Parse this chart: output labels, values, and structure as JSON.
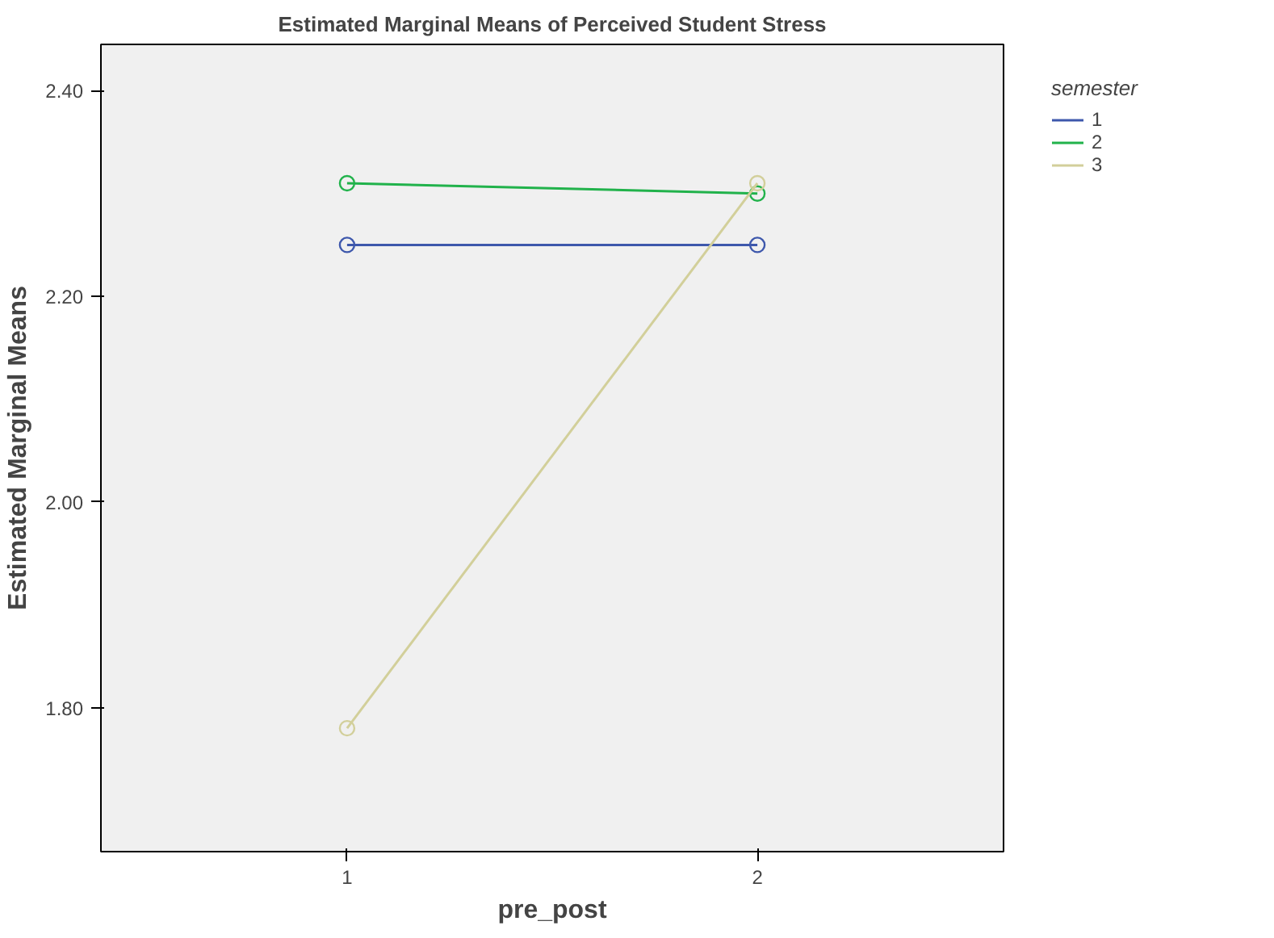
{
  "chart_data": {
    "type": "line",
    "title": "Estimated Marginal Means of Perceived Student Stress",
    "xlabel": "pre_post",
    "ylabel": "Estimated Marginal Means",
    "legend_title": "semester",
    "categories": [
      "1",
      "2"
    ],
    "series": [
      {
        "name": "1",
        "color": "#3e58ac",
        "values": [
          2.25,
          2.25
        ]
      },
      {
        "name": "2",
        "color": "#21b24b",
        "values": [
          2.31,
          2.3
        ]
      },
      {
        "name": "3",
        "color": "#d2cf9a",
        "values": [
          1.78,
          2.31
        ]
      }
    ],
    "ylim": [
      1.66,
      2.445
    ],
    "yticks": [
      {
        "value": 1.8,
        "label": "1.80"
      },
      {
        "value": 2.0,
        "label": "2.00"
      },
      {
        "value": 2.2,
        "label": "2.20"
      },
      {
        "value": 2.4,
        "label": "2.40"
      }
    ],
    "grid": false,
    "legend": "right",
    "marker": "circle",
    "line_style": "solid"
  }
}
